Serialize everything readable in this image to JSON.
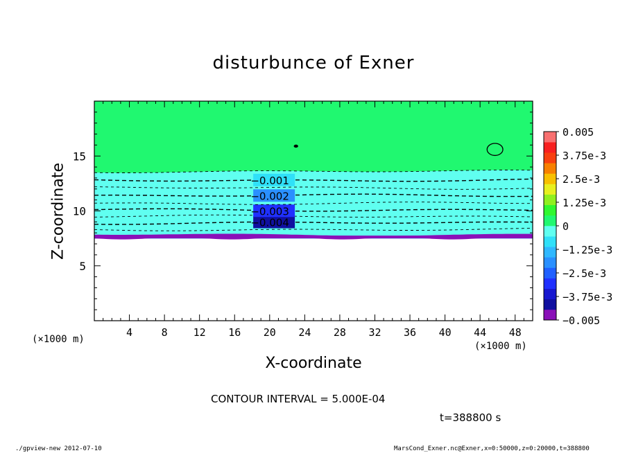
{
  "chart_data": {
    "type": "contour",
    "title": "disturbunce of Exner",
    "xlabel": "X-coordinate",
    "ylabel": "Z-coordinate",
    "x_unit": "(×1000 m)",
    "y_unit": "(×1000 m)",
    "xlim": [
      0,
      50
    ],
    "ylim": [
      0,
      20
    ],
    "x_ticks": [
      4,
      8,
      12,
      16,
      20,
      24,
      28,
      32,
      36,
      40,
      44,
      48
    ],
    "x_tick_labels": [
      "4",
      "8",
      "12",
      "16",
      "20",
      "24",
      "28",
      "32",
      "36",
      "40",
      "44",
      "48"
    ],
    "y_ticks": [
      5,
      10,
      15
    ],
    "y_tick_labels": [
      "5",
      "10",
      "15"
    ],
    "field_bottom_z": 7.5,
    "contour_interval": 0.0005,
    "contours": [
      {
        "level": -0.0005,
        "z": 13.6,
        "label": ""
      },
      {
        "level": -0.001,
        "z": 12.8,
        "label": "-0.001"
      },
      {
        "level": -0.0015,
        "z": 12.1,
        "label": ""
      },
      {
        "level": -0.002,
        "z": 11.4,
        "label": "-0.002"
      },
      {
        "level": -0.0025,
        "z": 10.7,
        "label": ""
      },
      {
        "level": -0.003,
        "z": 10.1,
        "label": "-0.003"
      },
      {
        "level": -0.0035,
        "z": 9.5,
        "label": ""
      },
      {
        "level": -0.004,
        "z": 8.9,
        "label": "-0.004"
      },
      {
        "level": -0.0045,
        "z": 8.3,
        "label": ""
      }
    ],
    "zero_contour_features": [
      {
        "x": 23,
        "z": 15.9,
        "rx": 0.2,
        "rz": 0.1
      },
      {
        "x": 45.7,
        "z": 15.6,
        "rx": 0.9,
        "rz": 0.55
      }
    ],
    "colorbar": {
      "levels": [
        -0.005,
        -0.0045,
        -0.004,
        -0.0035,
        -0.003,
        -0.0025,
        -0.002,
        -0.0015,
        -0.001,
        -0.0005,
        0,
        0.0005,
        0.00125,
        0.0015,
        0.0025,
        0.003,
        0.00375,
        0.0045,
        0.005
      ],
      "colors": [
        "#8a10b8",
        "#1010a0",
        "#1818d0",
        "#2030ff",
        "#2060ff",
        "#2a90ff",
        "#30b8ff",
        "#30e0f8",
        "#60fff0",
        "#20f870",
        "#30f830",
        "#90f020",
        "#e8f020",
        "#f8c000",
        "#f88000",
        "#f84010",
        "#f82020",
        "#f87070"
      ],
      "tick_labels": [
        "0.005",
        "3.75e-3",
        "2.5e-3",
        "1.25e-3",
        "0",
        "-1.25e-3",
        "-2.5e-3",
        "-3.75e-3",
        "-0.005"
      ]
    },
    "grid": false,
    "legend": "colorbar-right"
  },
  "annotations": {
    "contour_interval": "CONTOUR INTERVAL = 5.000E-04",
    "time": "t=388800 s",
    "footer_left": "./gpview-new  2012-07-10",
    "footer_right": "MarsCond_Exner.nc@Exner,x=0:50000,z=0:20000,t=388800"
  }
}
